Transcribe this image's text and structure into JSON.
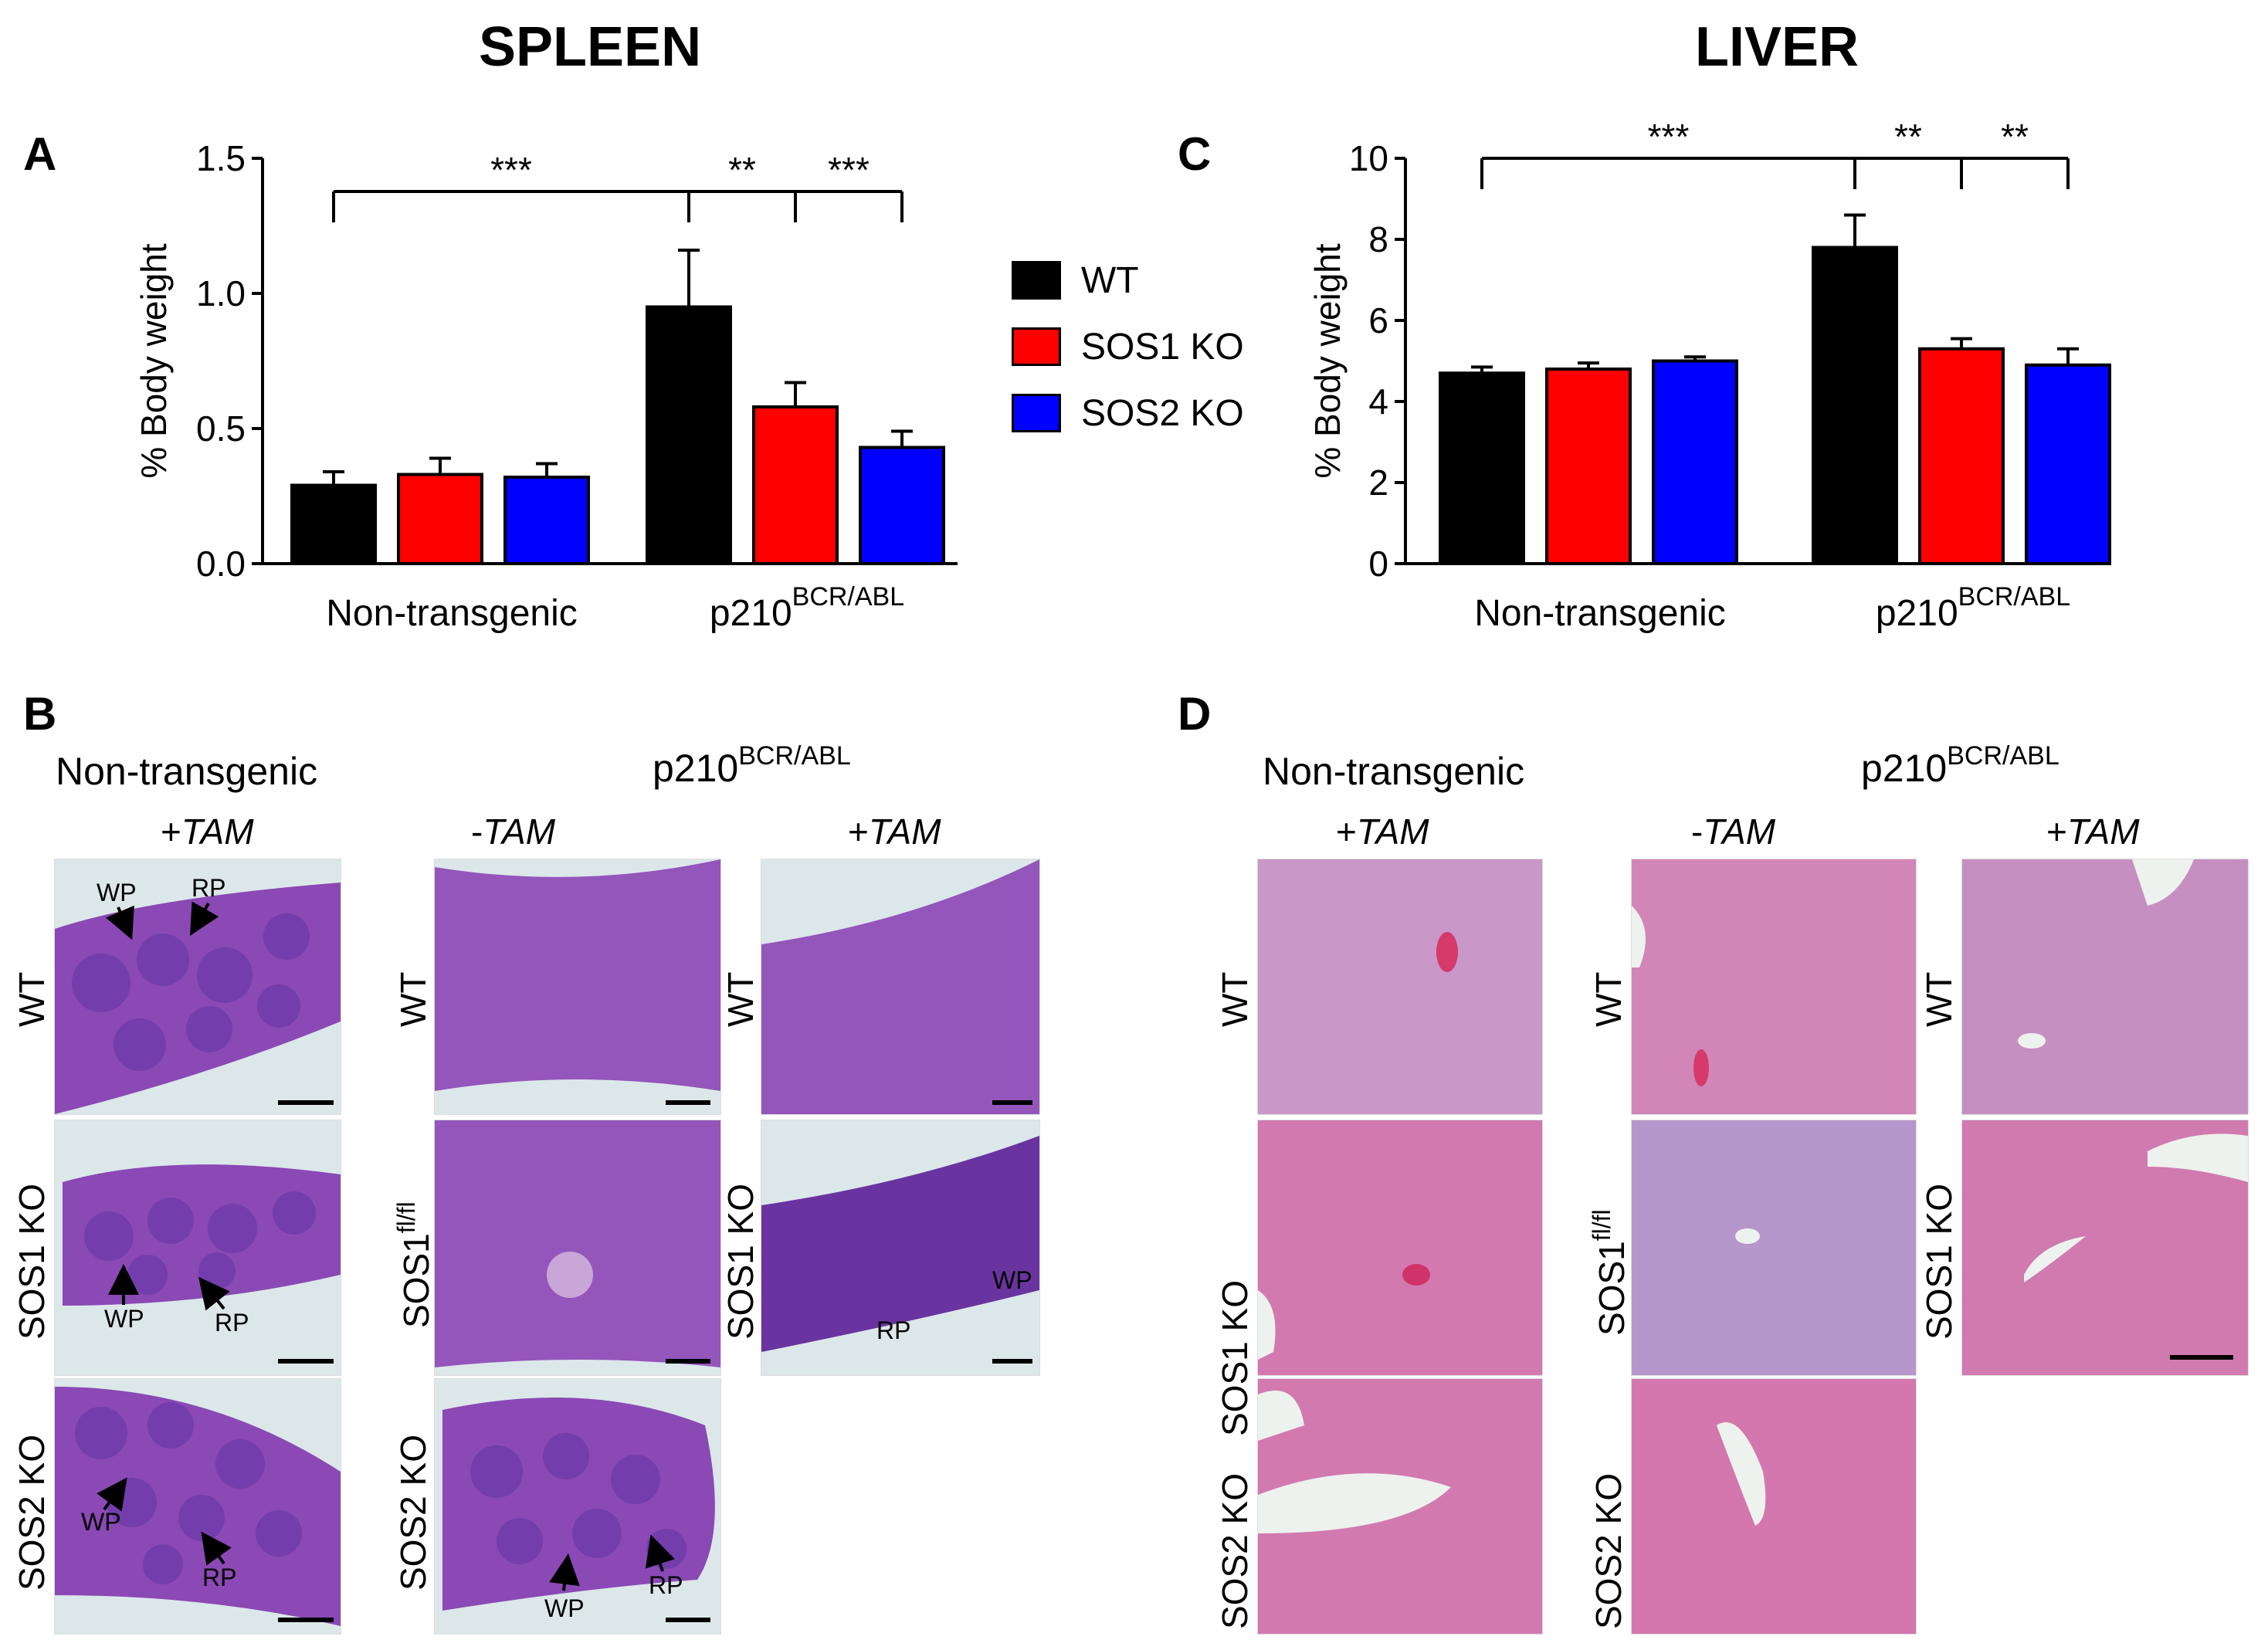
{
  "titles": {
    "spleen": "SPLEEN",
    "liver": "LIVER"
  },
  "panels": {
    "A": "A",
    "B": "B",
    "C": "C",
    "D": "D"
  },
  "legend": [
    {
      "label": "WT",
      "color": "#000000"
    },
    {
      "label": "SOS1 KO",
      "color": "#ff0000"
    },
    {
      "label": "SOS2 KO",
      "color": "#0000ff"
    }
  ],
  "chart_data": [
    {
      "type": "bar",
      "panel": "A",
      "ylabel": "% Body weight",
      "ylim": [
        0,
        1.5
      ],
      "yticks": [
        "0.0",
        "0.5",
        "1.0",
        "1.5"
      ],
      "yticks_values": [
        0,
        0.5,
        1.0,
        1.5
      ],
      "groups": [
        "Non-transgenic",
        "p210"
      ],
      "group_sup": [
        "",
        "BCR/ABL"
      ],
      "series": [
        {
          "name": "WT",
          "color": "#000000",
          "values": [
            0.29,
            0.95
          ],
          "errors": [
            0.05,
            0.21
          ]
        },
        {
          "name": "SOS1 KO",
          "color": "#ff0000",
          "values": [
            0.33,
            0.58
          ],
          "errors": [
            0.06,
            0.09
          ]
        },
        {
          "name": "SOS2 KO",
          "color": "#0000ff",
          "values": [
            0.32,
            0.43
          ],
          "errors": [
            0.05,
            0.06
          ]
        }
      ],
      "significance": [
        "***",
        "**",
        "***"
      ]
    },
    {
      "type": "bar",
      "panel": "C",
      "ylabel": "% Body weight",
      "ylim": [
        0,
        10
      ],
      "yticks": [
        "0",
        "2",
        "4",
        "6",
        "8",
        "10"
      ],
      "yticks_values": [
        0,
        2,
        4,
        6,
        8,
        10
      ],
      "groups": [
        "Non-transgenic",
        "p210"
      ],
      "group_sup": [
        "",
        "BCR/ABL"
      ],
      "series": [
        {
          "name": "WT",
          "color": "#000000",
          "values": [
            4.7,
            7.8
          ],
          "errors": [
            0.15,
            0.8
          ]
        },
        {
          "name": "SOS1 KO",
          "color": "#ff0000",
          "values": [
            4.8,
            5.3
          ],
          "errors": [
            0.15,
            0.25
          ]
        },
        {
          "name": "SOS2 KO",
          "color": "#0000ff",
          "values": [
            5.0,
            4.9
          ],
          "errors": [
            0.1,
            0.4
          ]
        }
      ],
      "significance": [
        "***",
        "**",
        "**"
      ]
    }
  ],
  "histology": {
    "group_nontransgenic": "Non-transgenic",
    "group_p210": "p210",
    "group_p210_sup": "BCR/ABL",
    "tam_plus": "+",
    "tam_minus": "-",
    "tam_word": "TAM",
    "row_wt": "WT",
    "row_sos1ko": "SOS1 KO",
    "row_sos2ko": "SOS2 KO",
    "row_sos1": "SOS1",
    "row_sos1_sup": "fl/fl",
    "wp": "WP",
    "rp": "RP"
  }
}
